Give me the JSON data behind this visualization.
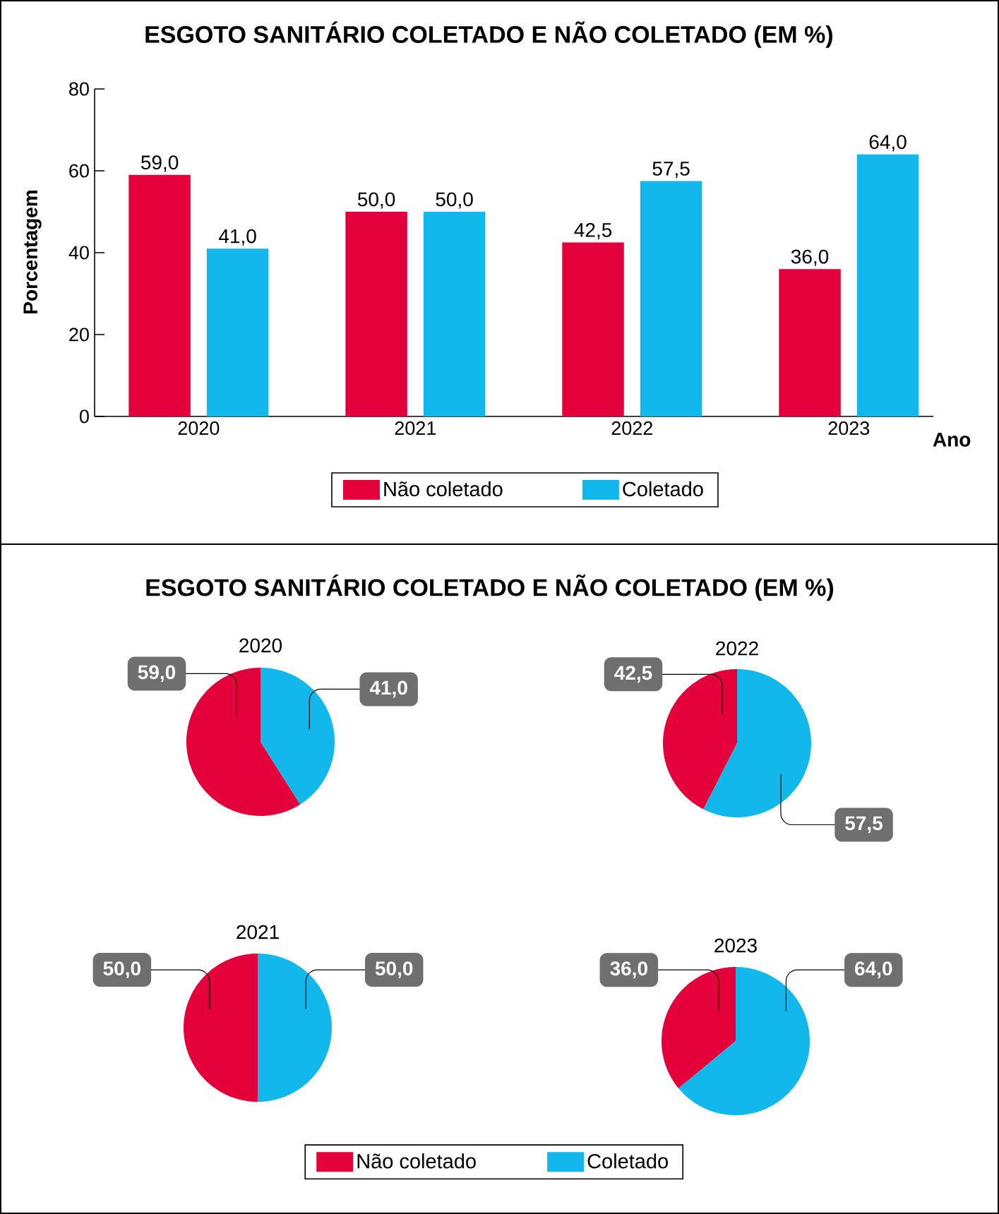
{
  "chart_data": [
    {
      "type": "bar",
      "title": "ESGOTO SANITÁRIO COLETADO E NÃO COLETADO (EM %)",
      "xlabel": "Ano",
      "ylabel": "Porcentagem",
      "categories": [
        "2020",
        "2021",
        "2022",
        "2023"
      ],
      "series": [
        {
          "name": "Não coletado",
          "color": "#e4003a",
          "values": [
            59.0,
            50.0,
            42.5,
            36.0
          ],
          "value_labels": [
            "59,0",
            "50,0",
            "42,5",
            "36,0"
          ]
        },
        {
          "name": "Coletado",
          "color": "#12b8eb",
          "values": [
            41.0,
            50.0,
            57.5,
            64.0
          ],
          "value_labels": [
            "41,0",
            "50,0",
            "57,5",
            "64,0"
          ]
        }
      ],
      "ylim": [
        0,
        80
      ],
      "yticks": [
        0,
        20,
        40,
        60,
        80
      ],
      "legend": "bottom"
    },
    {
      "type": "pie",
      "title": "2020",
      "annotations": [
        "ESGOTO SANITÁRIO COLETADO E NÃO COLETADO (EM %)"
      ],
      "categories": [
        null,
        null
      ],
      "values": [
        59.0,
        41.0
      ],
      "value_labels": [
        "59,0",
        "41,0"
      ],
      "colors": [
        "#e4003a",
        "#12b8eb"
      ]
    },
    {
      "type": "pie",
      "title": "2022",
      "categories": [
        null,
        null
      ],
      "values": [
        42.5,
        57.5
      ],
      "value_labels": [
        "42,5",
        "57,5"
      ],
      "colors": [
        "#e4003a",
        "#12b8eb"
      ]
    },
    {
      "type": "pie",
      "title": "2021",
      "categories": [
        null,
        null
      ],
      "values": [
        50.0,
        50.0
      ],
      "value_labels": [
        "50,0",
        "50,0"
      ],
      "colors": [
        "#e4003a",
        "#12b8eb"
      ]
    },
    {
      "type": "pie",
      "title": "2023",
      "categories": [
        "Não coletado",
        "Coletado"
      ],
      "values": [
        36.0,
        64.0
      ],
      "value_labels": [
        "36,0",
        "64,0"
      ],
      "colors": [
        "#e4003a",
        "#12b8eb"
      ],
      "legend": "bottom"
    }
  ]
}
